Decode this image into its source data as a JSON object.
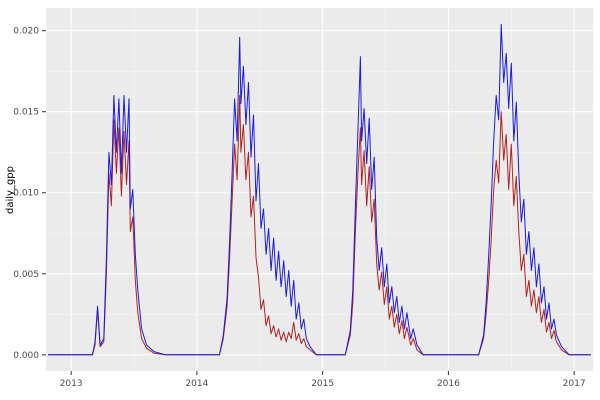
{
  "chart": {
    "panel_bg": "#EBEBEB",
    "plot_bg": "#FFFFFF",
    "grid_major_color": "#FFFFFF",
    "grid_minor_color": "#FFFFFF",
    "axis_text_color": "#4D4D4D",
    "tick_mark_color": "#333333",
    "xlim": [
      2012.8,
      2017.15
    ],
    "ylim": [
      -0.001,
      0.0214
    ],
    "x_ticks": [
      2013,
      2014,
      2015,
      2016,
      2017
    ],
    "x_tick_labels": [
      "2013",
      "2014",
      "2015",
      "2016",
      "2017"
    ],
    "x_minor": [
      2013.5,
      2014.5,
      2015.5,
      2016.5
    ],
    "y_ticks": [
      0,
      0.005,
      0.01,
      0.015,
      0.02
    ],
    "y_tick_labels": [
      "0.000",
      "0.005",
      "0.010",
      "0.015",
      "0.020"
    ],
    "y_minor": [
      0.0025,
      0.0075,
      0.0125,
      0.0175
    ]
  },
  "chart_data": {
    "type": "line",
    "title": "",
    "xlabel": "",
    "ylabel": "daily_gpp",
    "x_axis": "year (2013–2017, daily time series)",
    "legend": "none",
    "grid": true,
    "series": [
      {
        "name": "gpp-blue",
        "color": "#1A1AE6",
        "points": [
          [
            2012.82,
            0
          ],
          [
            2013.17,
            0
          ],
          [
            2013.19,
            0.0008
          ],
          [
            2013.21,
            0.003
          ],
          [
            2013.23,
            0.0006
          ],
          [
            2013.26,
            0.001
          ],
          [
            2013.28,
            0.006
          ],
          [
            2013.3,
            0.0125
          ],
          [
            2013.32,
            0.0105
          ],
          [
            2013.34,
            0.016
          ],
          [
            2013.36,
            0.0125
          ],
          [
            2013.38,
            0.0158
          ],
          [
            2013.4,
            0.0112
          ],
          [
            2013.42,
            0.016
          ],
          [
            2013.44,
            0.0125
          ],
          [
            2013.46,
            0.0158
          ],
          [
            2013.47,
            0.009
          ],
          [
            2013.49,
            0.0102
          ],
          [
            2013.51,
            0.0062
          ],
          [
            2013.53,
            0.004
          ],
          [
            2013.56,
            0.0016
          ],
          [
            2013.6,
            0.0006
          ],
          [
            2013.66,
            0.0002
          ],
          [
            2013.75,
            0
          ],
          [
            2014.18,
            0
          ],
          [
            2014.21,
            0.0012
          ],
          [
            2014.24,
            0.0035
          ],
          [
            2014.26,
            0.007
          ],
          [
            2014.28,
            0.0112
          ],
          [
            2014.3,
            0.0158
          ],
          [
            2014.32,
            0.0132
          ],
          [
            2014.34,
            0.0196
          ],
          [
            2014.35,
            0.0155
          ],
          [
            2014.37,
            0.0178
          ],
          [
            2014.39,
            0.0142
          ],
          [
            2014.41,
            0.0168
          ],
          [
            2014.43,
            0.0122
          ],
          [
            2014.45,
            0.0148
          ],
          [
            2014.47,
            0.0095
          ],
          [
            2014.49,
            0.0118
          ],
          [
            2014.51,
            0.0078
          ],
          [
            2014.53,
            0.009
          ],
          [
            2014.55,
            0.0062
          ],
          [
            2014.57,
            0.0078
          ],
          [
            2014.59,
            0.0052
          ],
          [
            2014.61,
            0.0072
          ],
          [
            2014.63,
            0.0046
          ],
          [
            2014.65,
            0.0064
          ],
          [
            2014.67,
            0.0042
          ],
          [
            2014.69,
            0.0058
          ],
          [
            2014.71,
            0.0036
          ],
          [
            2014.73,
            0.0052
          ],
          [
            2014.75,
            0.003
          ],
          [
            2014.77,
            0.0046
          ],
          [
            2014.79,
            0.0022
          ],
          [
            2014.81,
            0.0032
          ],
          [
            2014.83,
            0.0016
          ],
          [
            2014.85,
            0.0022
          ],
          [
            2014.87,
            0.001
          ],
          [
            2014.9,
            0.0005
          ],
          [
            2014.95,
            0
          ],
          [
            2015.18,
            0
          ],
          [
            2015.22,
            0.0015
          ],
          [
            2015.24,
            0.004
          ],
          [
            2015.26,
            0.009
          ],
          [
            2015.28,
            0.0138
          ],
          [
            2015.3,
            0.0184
          ],
          [
            2015.31,
            0.0132
          ],
          [
            2015.33,
            0.0152
          ],
          [
            2015.35,
            0.0118
          ],
          [
            2015.37,
            0.0146
          ],
          [
            2015.39,
            0.0102
          ],
          [
            2015.41,
            0.0122
          ],
          [
            2015.43,
            0.0072
          ],
          [
            2015.45,
            0.0052
          ],
          [
            2015.47,
            0.0066
          ],
          [
            2015.49,
            0.0042
          ],
          [
            2015.51,
            0.0056
          ],
          [
            2015.53,
            0.0032
          ],
          [
            2015.55,
            0.0042
          ],
          [
            2015.57,
            0.0026
          ],
          [
            2015.59,
            0.0036
          ],
          [
            2015.61,
            0.002
          ],
          [
            2015.63,
            0.003
          ],
          [
            2015.65,
            0.0016
          ],
          [
            2015.67,
            0.0026
          ],
          [
            2015.7,
            0.001
          ],
          [
            2015.72,
            0.0016
          ],
          [
            2015.75,
            0.0006
          ],
          [
            2015.8,
            0
          ],
          [
            2016.24,
            0
          ],
          [
            2016.28,
            0.0012
          ],
          [
            2016.3,
            0.0032
          ],
          [
            2016.32,
            0.006
          ],
          [
            2016.34,
            0.0092
          ],
          [
            2016.36,
            0.0132
          ],
          [
            2016.38,
            0.016
          ],
          [
            2016.4,
            0.0145
          ],
          [
            2016.42,
            0.0204
          ],
          [
            2016.44,
            0.0168
          ],
          [
            2016.46,
            0.0186
          ],
          [
            2016.48,
            0.0152
          ],
          [
            2016.5,
            0.018
          ],
          [
            2016.52,
            0.0132
          ],
          [
            2016.54,
            0.0156
          ],
          [
            2016.56,
            0.0112
          ],
          [
            2016.58,
            0.0082
          ],
          [
            2016.6,
            0.0096
          ],
          [
            2016.62,
            0.0062
          ],
          [
            2016.64,
            0.0076
          ],
          [
            2016.66,
            0.0052
          ],
          [
            2016.68,
            0.0066
          ],
          [
            2016.7,
            0.0042
          ],
          [
            2016.72,
            0.0056
          ],
          [
            2016.74,
            0.0032
          ],
          [
            2016.76,
            0.0042
          ],
          [
            2016.78,
            0.0022
          ],
          [
            2016.8,
            0.0032
          ],
          [
            2016.82,
            0.0016
          ],
          [
            2016.84,
            0.0022
          ],
          [
            2016.86,
            0.0012
          ],
          [
            2016.9,
            0.0005
          ],
          [
            2016.96,
            0
          ],
          [
            2017.13,
            0
          ]
        ]
      },
      {
        "name": "gpp-red",
        "color": "#B22222",
        "points": [
          [
            2012.82,
            0
          ],
          [
            2013.17,
            0
          ],
          [
            2013.19,
            0.0006
          ],
          [
            2013.21,
            0.0028
          ],
          [
            2013.23,
            0.0005
          ],
          [
            2013.26,
            0.0008
          ],
          [
            2013.28,
            0.005
          ],
          [
            2013.3,
            0.0112
          ],
          [
            2013.32,
            0.0092
          ],
          [
            2013.34,
            0.0145
          ],
          [
            2013.36,
            0.0112
          ],
          [
            2013.38,
            0.014
          ],
          [
            2013.4,
            0.0098
          ],
          [
            2013.42,
            0.0138
          ],
          [
            2013.44,
            0.0105
          ],
          [
            2013.46,
            0.0132
          ],
          [
            2013.47,
            0.0076
          ],
          [
            2013.49,
            0.0085
          ],
          [
            2013.51,
            0.0046
          ],
          [
            2013.53,
            0.0026
          ],
          [
            2013.56,
            0.001
          ],
          [
            2013.6,
            0.0004
          ],
          [
            2013.66,
            0.0001
          ],
          [
            2013.75,
            0
          ],
          [
            2014.18,
            0
          ],
          [
            2014.21,
            0.001
          ],
          [
            2014.24,
            0.003
          ],
          [
            2014.26,
            0.006
          ],
          [
            2014.28,
            0.0095
          ],
          [
            2014.3,
            0.013
          ],
          [
            2014.32,
            0.0108
          ],
          [
            2014.34,
            0.016
          ],
          [
            2014.35,
            0.0125
          ],
          [
            2014.37,
            0.0142
          ],
          [
            2014.39,
            0.0108
          ],
          [
            2014.41,
            0.0125
          ],
          [
            2014.43,
            0.0085
          ],
          [
            2014.45,
            0.0098
          ],
          [
            2014.47,
            0.006
          ],
          [
            2014.49,
            0.0048
          ],
          [
            2014.51,
            0.0028
          ],
          [
            2014.53,
            0.0034
          ],
          [
            2014.55,
            0.0018
          ],
          [
            2014.57,
            0.0024
          ],
          [
            2014.59,
            0.0013
          ],
          [
            2014.61,
            0.0018
          ],
          [
            2014.63,
            0.0011
          ],
          [
            2014.65,
            0.0016
          ],
          [
            2014.67,
            0.0009
          ],
          [
            2014.69,
            0.0014
          ],
          [
            2014.71,
            0.0008
          ],
          [
            2014.73,
            0.0014
          ],
          [
            2014.75,
            0.001
          ],
          [
            2014.77,
            0.002
          ],
          [
            2014.79,
            0.0009
          ],
          [
            2014.81,
            0.0013
          ],
          [
            2014.83,
            0.0007
          ],
          [
            2014.85,
            0.001
          ],
          [
            2014.87,
            0.0005
          ],
          [
            2014.9,
            0.0003
          ],
          [
            2014.95,
            0
          ],
          [
            2015.18,
            0
          ],
          [
            2015.22,
            0.0012
          ],
          [
            2015.24,
            0.0032
          ],
          [
            2015.26,
            0.0075
          ],
          [
            2015.28,
            0.0112
          ],
          [
            2015.3,
            0.014
          ],
          [
            2015.31,
            0.0105
          ],
          [
            2015.33,
            0.0126
          ],
          [
            2015.35,
            0.0092
          ],
          [
            2015.37,
            0.0116
          ],
          [
            2015.39,
            0.0082
          ],
          [
            2015.41,
            0.0096
          ],
          [
            2015.43,
            0.0056
          ],
          [
            2015.45,
            0.004
          ],
          [
            2015.47,
            0.0051
          ],
          [
            2015.49,
            0.0031
          ],
          [
            2015.51,
            0.0042
          ],
          [
            2015.53,
            0.0022
          ],
          [
            2015.55,
            0.003
          ],
          [
            2015.57,
            0.0017
          ],
          [
            2015.59,
            0.0025
          ],
          [
            2015.61,
            0.0013
          ],
          [
            2015.63,
            0.0021
          ],
          [
            2015.65,
            0.001
          ],
          [
            2015.67,
            0.0017
          ],
          [
            2015.7,
            0.0006
          ],
          [
            2015.72,
            0.001
          ],
          [
            2015.75,
            0.0003
          ],
          [
            2015.8,
            0
          ],
          [
            2016.24,
            0
          ],
          [
            2016.28,
            0.001
          ],
          [
            2016.3,
            0.0025
          ],
          [
            2016.32,
            0.0045
          ],
          [
            2016.34,
            0.007
          ],
          [
            2016.36,
            0.0102
          ],
          [
            2016.38,
            0.012
          ],
          [
            2016.4,
            0.0106
          ],
          [
            2016.42,
            0.015
          ],
          [
            2016.44,
            0.012
          ],
          [
            2016.46,
            0.0136
          ],
          [
            2016.48,
            0.0102
          ],
          [
            2016.5,
            0.013
          ],
          [
            2016.52,
            0.0092
          ],
          [
            2016.54,
            0.011
          ],
          [
            2016.56,
            0.0076
          ],
          [
            2016.58,
            0.0052
          ],
          [
            2016.6,
            0.0062
          ],
          [
            2016.62,
            0.0036
          ],
          [
            2016.64,
            0.0046
          ],
          [
            2016.66,
            0.003
          ],
          [
            2016.68,
            0.004
          ],
          [
            2016.7,
            0.0026
          ],
          [
            2016.72,
            0.0036
          ],
          [
            2016.74,
            0.002
          ],
          [
            2016.76,
            0.0028
          ],
          [
            2016.78,
            0.0014
          ],
          [
            2016.8,
            0.002
          ],
          [
            2016.82,
            0.001
          ],
          [
            2016.84,
            0.0015
          ],
          [
            2016.86,
            0.0008
          ],
          [
            2016.9,
            0.0003
          ],
          [
            2016.96,
            0
          ],
          [
            2017.13,
            0
          ]
        ]
      }
    ]
  }
}
